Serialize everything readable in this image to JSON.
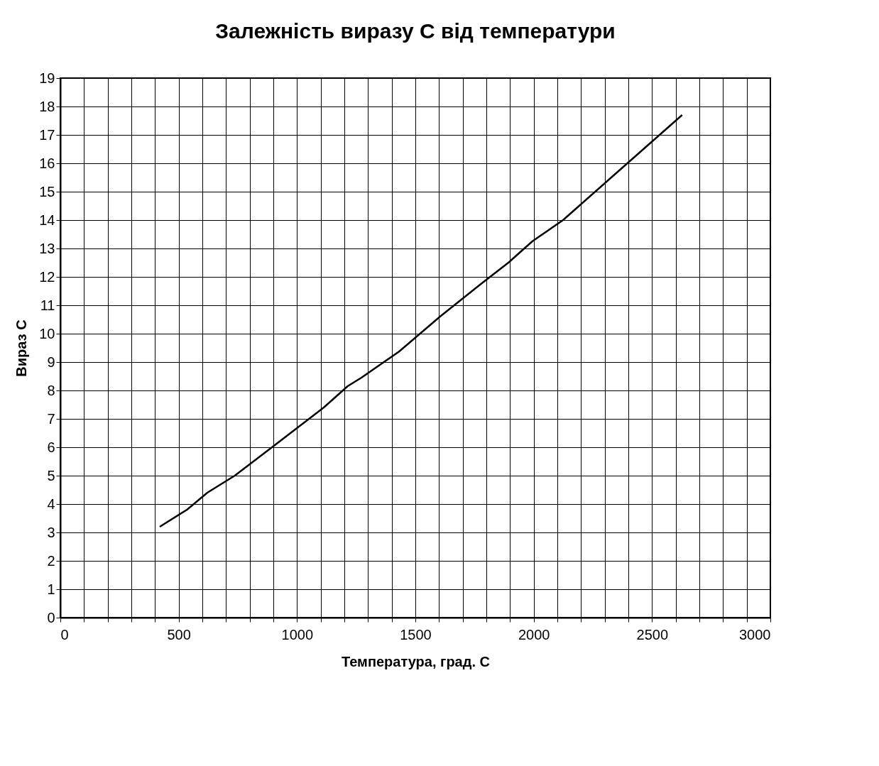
{
  "chart_data": {
    "type": "line",
    "title": "Залежність виразу С від температури",
    "xlabel": "Температура, град. С",
    "ylabel": "Вираз С",
    "x": [
      420,
      535,
      621,
      737,
      910,
      1113,
      1214,
      1272,
      1431,
      1604,
      1777,
      1893,
      1994,
      2124,
      2355,
      2627
    ],
    "series": [
      {
        "color": "#000000",
        "values": [
          3.2,
          3.8,
          4.4,
          5.0,
          6.1,
          7.4,
          8.15,
          8.45,
          9.37,
          10.6,
          11.75,
          12.5,
          13.25,
          14.0,
          15.7,
          17.7
        ]
      }
    ],
    "xlim": [
      0,
      3000
    ],
    "ylim": [
      0,
      19
    ],
    "xticks": [
      0,
      {
        "value": 100,
        "label": null
      },
      {
        "value": 200,
        "label": null
      },
      {
        "value": 300,
        "label": null
      },
      {
        "value": 400,
        "label": null
      },
      500,
      {
        "value": 600,
        "label": null
      },
      {
        "value": 700,
        "label": null
      },
      {
        "value": 800,
        "label": null
      },
      {
        "value": 900,
        "label": null
      },
      1000,
      {
        "value": 1100,
        "label": null
      },
      {
        "value": 1200,
        "label": null
      },
      {
        "value": 1300,
        "label": null
      },
      {
        "value": 1400,
        "label": null
      },
      1500,
      {
        "value": 1600,
        "label": null
      },
      {
        "value": 1700,
        "label": null
      },
      {
        "value": 1800,
        "label": null
      },
      {
        "value": 1900,
        "label": null
      },
      2000,
      {
        "value": 2100,
        "label": null
      },
      {
        "value": 2200,
        "label": null
      },
      {
        "value": 2300,
        "label": null
      },
      {
        "value": 2400,
        "label": null
      },
      2500,
      {
        "value": 2600,
        "label": null
      },
      {
        "value": 2700,
        "label": null
      },
      {
        "value": 2800,
        "label": null
      },
      {
        "value": 2900,
        "label": null
      },
      3000
    ],
    "yticks": [
      0,
      1,
      2,
      3,
      4,
      5,
      6,
      7,
      8,
      9,
      10,
      11,
      12,
      13,
      14,
      15,
      16,
      17,
      18,
      19
    ],
    "grid": true,
    "legend": false,
    "marker": "none",
    "line_style": "solid"
  }
}
